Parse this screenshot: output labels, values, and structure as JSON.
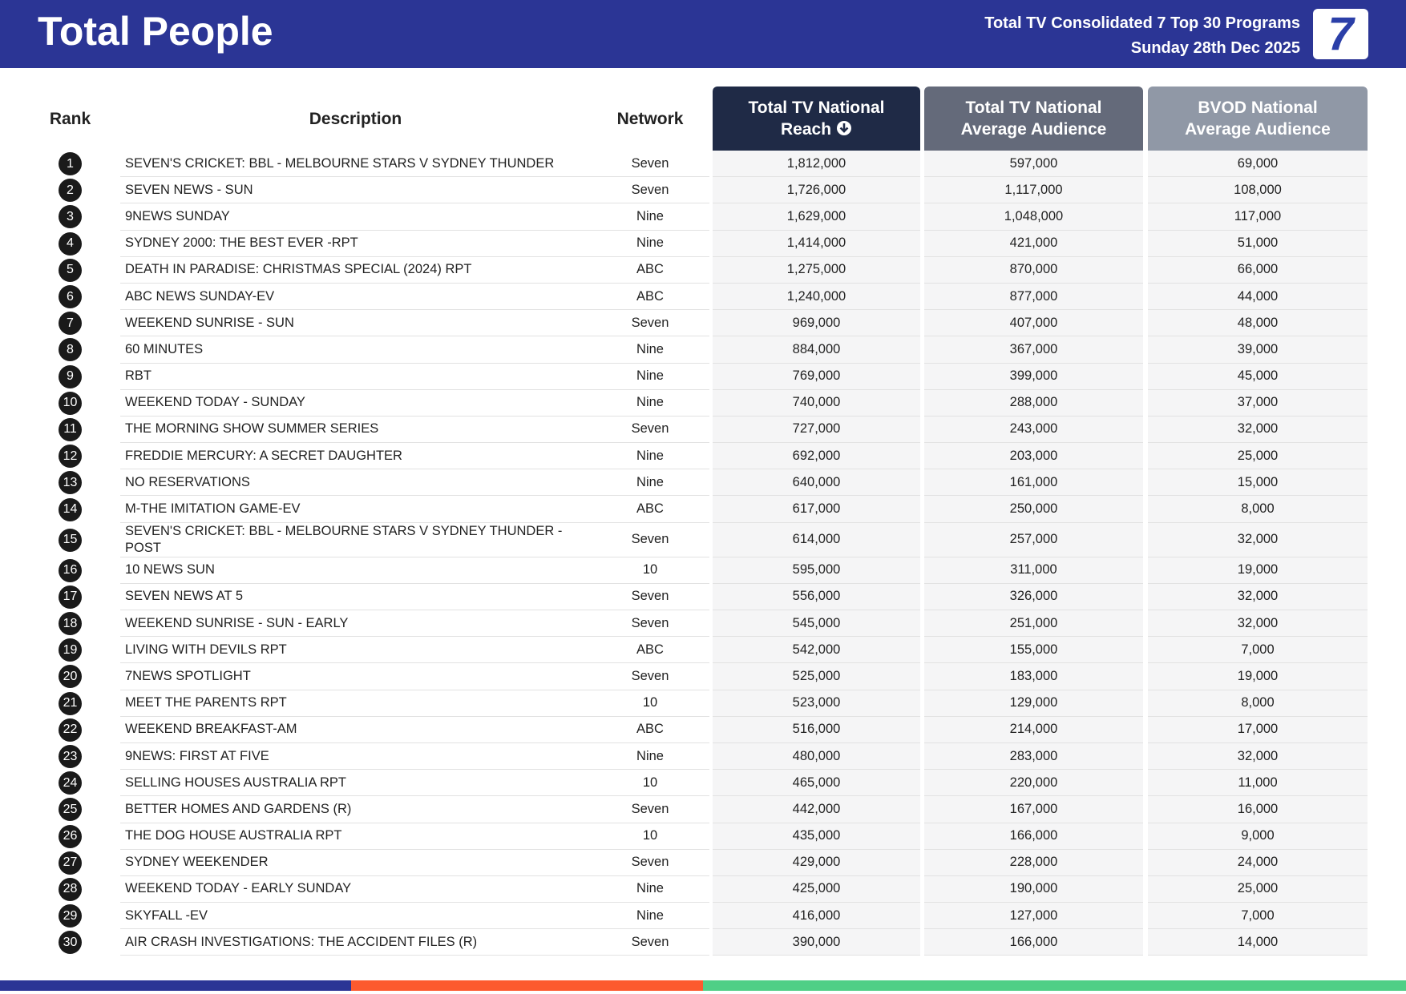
{
  "header": {
    "title": "Total People",
    "subtitle_lines": [
      "Total TV Consolidated 7 Top 30 Programs",
      "Sunday 28th Dec 2025"
    ],
    "logo": "7"
  },
  "table": {
    "columns": [
      [
        "Rank"
      ],
      [
        "Description"
      ],
      [
        "Network"
      ],
      [
        "Total TV National",
        "Reach"
      ],
      [
        "Total TV National",
        "Average Audience"
      ],
      [
        "BVOD National",
        "Average Audience"
      ]
    ],
    "rows": [
      [
        "1",
        "SEVEN'S CRICKET: BBL - MELBOURNE STARS V SYDNEY THUNDER",
        "Seven",
        "1,812,000",
        "597,000",
        "69,000"
      ],
      [
        "2",
        "SEVEN NEWS - SUN",
        "Seven",
        "1,726,000",
        "1,117,000",
        "108,000"
      ],
      [
        "3",
        "9NEWS SUNDAY",
        "Nine",
        "1,629,000",
        "1,048,000",
        "117,000"
      ],
      [
        "4",
        "SYDNEY 2000: THE BEST EVER -RPT",
        "Nine",
        "1,414,000",
        "421,000",
        "51,000"
      ],
      [
        "5",
        "DEATH IN PARADISE: CHRISTMAS SPECIAL (2024) RPT",
        "ABC",
        "1,275,000",
        "870,000",
        "66,000"
      ],
      [
        "6",
        "ABC NEWS SUNDAY-EV",
        "ABC",
        "1,240,000",
        "877,000",
        "44,000"
      ],
      [
        "7",
        "WEEKEND SUNRISE - SUN",
        "Seven",
        "969,000",
        "407,000",
        "48,000"
      ],
      [
        "8",
        "60 MINUTES",
        "Nine",
        "884,000",
        "367,000",
        "39,000"
      ],
      [
        "9",
        "RBT",
        "Nine",
        "769,000",
        "399,000",
        "45,000"
      ],
      [
        "10",
        "WEEKEND TODAY - SUNDAY",
        "Nine",
        "740,000",
        "288,000",
        "37,000"
      ],
      [
        "11",
        "THE MORNING SHOW SUMMER SERIES",
        "Seven",
        "727,000",
        "243,000",
        "32,000"
      ],
      [
        "12",
        "FREDDIE MERCURY: A SECRET DAUGHTER",
        "Nine",
        "692,000",
        "203,000",
        "25,000"
      ],
      [
        "13",
        "NO RESERVATIONS",
        "Nine",
        "640,000",
        "161,000",
        "15,000"
      ],
      [
        "14",
        "M-THE IMITATION GAME-EV",
        "ABC",
        "617,000",
        "250,000",
        "8,000"
      ],
      [
        "15",
        "SEVEN'S CRICKET: BBL - MELBOURNE STARS V SYDNEY THUNDER - POST",
        "Seven",
        "614,000",
        "257,000",
        "32,000"
      ],
      [
        "16",
        "10 NEWS SUN",
        "10",
        "595,000",
        "311,000",
        "19,000"
      ],
      [
        "17",
        "SEVEN NEWS AT 5",
        "Seven",
        "556,000",
        "326,000",
        "32,000"
      ],
      [
        "18",
        "WEEKEND SUNRISE - SUN - EARLY",
        "Seven",
        "545,000",
        "251,000",
        "32,000"
      ],
      [
        "19",
        "LIVING WITH DEVILS RPT",
        "ABC",
        "542,000",
        "155,000",
        "7,000"
      ],
      [
        "20",
        "7NEWS SPOTLIGHT",
        "Seven",
        "525,000",
        "183,000",
        "19,000"
      ],
      [
        "21",
        "MEET THE PARENTS RPT",
        "10",
        "523,000",
        "129,000",
        "8,000"
      ],
      [
        "22",
        "WEEKEND BREAKFAST-AM",
        "ABC",
        "516,000",
        "214,000",
        "17,000"
      ],
      [
        "23",
        "9NEWS: FIRST AT FIVE",
        "Nine",
        "480,000",
        "283,000",
        "32,000"
      ],
      [
        "24",
        "SELLING HOUSES AUSTRALIA RPT",
        "10",
        "465,000",
        "220,000",
        "11,000"
      ],
      [
        "25",
        "BETTER HOMES AND GARDENS (R)",
        "Seven",
        "442,000",
        "167,000",
        "16,000"
      ],
      [
        "26",
        "THE DOG HOUSE AUSTRALIA RPT",
        "10",
        "435,000",
        "166,000",
        "9,000"
      ],
      [
        "27",
        "SYDNEY WEEKENDER",
        "Seven",
        "429,000",
        "228,000",
        "24,000"
      ],
      [
        "28",
        "WEEKEND TODAY - EARLY SUNDAY",
        "Nine",
        "425,000",
        "190,000",
        "25,000"
      ],
      [
        "29",
        "SKYFALL -EV",
        "Nine",
        "416,000",
        "127,000",
        "7,000"
      ],
      [
        "30",
        "AIR CRASH INVESTIGATIONS: THE ACCIDENT FILES (R)",
        "Seven",
        "390,000",
        "166,000",
        "14,000"
      ]
    ]
  }
}
